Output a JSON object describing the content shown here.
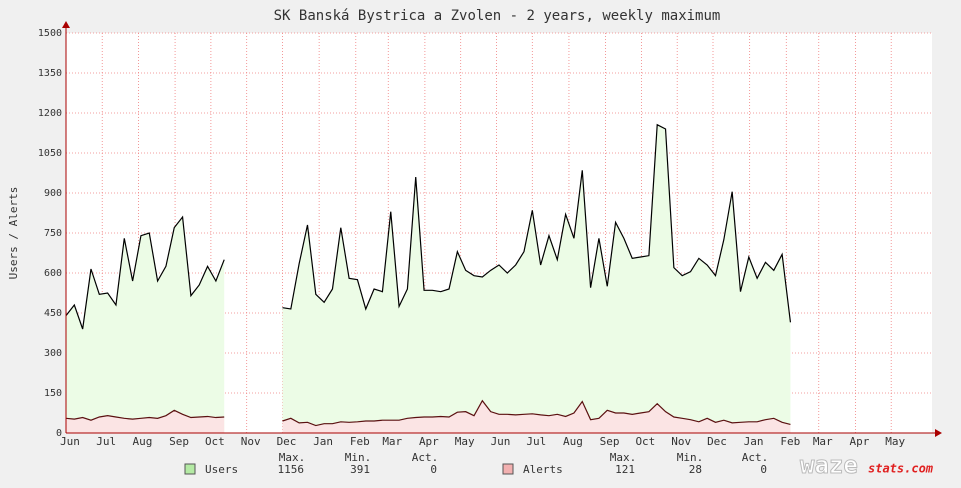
{
  "chart_data": {
    "type": "line",
    "title": "SK Banská Bystrica a Zvolen - 2 years, weekly maximum",
    "y_label": "Users / Alerts",
    "xlim": [
      0,
      104
    ],
    "ylim": [
      0,
      1500
    ],
    "yticks": [
      0,
      150,
      300,
      450,
      600,
      750,
      900,
      1050,
      1200,
      1350,
      1500
    ],
    "xticks": [
      {
        "value": 0,
        "label": "Jun"
      },
      {
        "value": 4.35,
        "label": "Jul"
      },
      {
        "value": 8.7,
        "label": "Aug"
      },
      {
        "value": 13.1,
        "label": "Sep"
      },
      {
        "value": 17.4,
        "label": "Oct"
      },
      {
        "value": 21.7,
        "label": "Nov"
      },
      {
        "value": 26,
        "label": "Dec"
      },
      {
        "value": 30.4,
        "label": "Jan"
      },
      {
        "value": 34.8,
        "label": "Feb"
      },
      {
        "value": 38.7,
        "label": "Mar"
      },
      {
        "value": 43.1,
        "label": "Apr"
      },
      {
        "value": 47.4,
        "label": "May"
      },
      {
        "value": 51.7,
        "label": "Jun"
      },
      {
        "value": 56,
        "label": "Jul"
      },
      {
        "value": 60.4,
        "label": "Aug"
      },
      {
        "value": 64.8,
        "label": "Sep"
      },
      {
        "value": 69.1,
        "label": "Oct"
      },
      {
        "value": 73.4,
        "label": "Nov"
      },
      {
        "value": 77.7,
        "label": "Dec"
      },
      {
        "value": 82.1,
        "label": "Jan"
      },
      {
        "value": 86.5,
        "label": "Feb"
      },
      {
        "value": 90.4,
        "label": "Mar"
      },
      {
        "value": 94.8,
        "label": "Apr"
      },
      {
        "value": 99.1,
        "label": "May"
      }
    ],
    "grid": true,
    "x": [
      0,
      1,
      2,
      3,
      4,
      5,
      6,
      7,
      8,
      9,
      10,
      11,
      12,
      13,
      14,
      15,
      16,
      17,
      18,
      19,
      20,
      21,
      22,
      23,
      24,
      25,
      26,
      27,
      28,
      29,
      30,
      31,
      32,
      33,
      34,
      35,
      36,
      37,
      38,
      39,
      40,
      41,
      42,
      43,
      44,
      45,
      46,
      47,
      48,
      49,
      50,
      51,
      52,
      53,
      54,
      55,
      56,
      57,
      58,
      59,
      60,
      61,
      62,
      63,
      64,
      65,
      66,
      67,
      68,
      69,
      70,
      71,
      72,
      73,
      74,
      75,
      76,
      77,
      78,
      79,
      80,
      81,
      82,
      83,
      84,
      85,
      86,
      87
    ],
    "series": [
      {
        "name": "Users",
        "color": "#000000",
        "fill": "#ecfce6",
        "swatch": "#b4eaa4",
        "values": [
          440,
          480,
          390,
          615,
          520,
          525,
          480,
          730,
          570,
          740,
          750,
          570,
          625,
          770,
          810,
          515,
          555,
          625,
          570,
          650,
          null,
          null,
          null,
          null,
          null,
          null,
          470,
          465,
          635,
          780,
          520,
          490,
          540,
          770,
          580,
          575,
          465,
          540,
          530,
          830,
          475,
          540,
          960,
          535,
          535,
          530,
          540,
          680,
          610,
          590,
          585,
          610,
          630,
          600,
          630,
          680,
          835,
          630,
          740,
          650,
          820,
          730,
          985,
          545,
          730,
          550,
          790,
          730,
          655,
          660,
          665,
          1156,
          1140,
          620,
          590,
          605,
          655,
          630,
          590,
          725,
          905,
          530,
          660,
          580,
          640,
          610,
          670,
          415
        ],
        "stats": [
          1156,
          391,
          0
        ]
      },
      {
        "name": "Alerts",
        "color": "#5a1010",
        "fill": "#fbe4e4",
        "swatch": "#f2b0b0",
        "values": [
          55,
          52,
          58,
          48,
          60,
          65,
          60,
          55,
          52,
          55,
          58,
          55,
          65,
          85,
          70,
          58,
          60,
          62,
          58,
          60,
          null,
          null,
          null,
          null,
          null,
          null,
          45,
          55,
          38,
          40,
          28,
          35,
          35,
          42,
          40,
          42,
          45,
          45,
          48,
          48,
          48,
          55,
          58,
          60,
          60,
          62,
          60,
          78,
          80,
          65,
          121,
          80,
          70,
          70,
          68,
          70,
          72,
          68,
          65,
          70,
          62,
          75,
          118,
          50,
          55,
          85,
          75,
          75,
          70,
          75,
          80,
          110,
          80,
          60,
          55,
          50,
          42,
          55,
          40,
          48,
          38,
          40,
          42,
          42,
          50,
          55,
          40,
          32
        ],
        "stats": [
          121,
          28,
          0
        ]
      }
    ],
    "stat_labels": [
      "Max.",
      "Min.",
      "Act."
    ]
  },
  "logo": {
    "main": "waze",
    "sub": "stats.com"
  }
}
